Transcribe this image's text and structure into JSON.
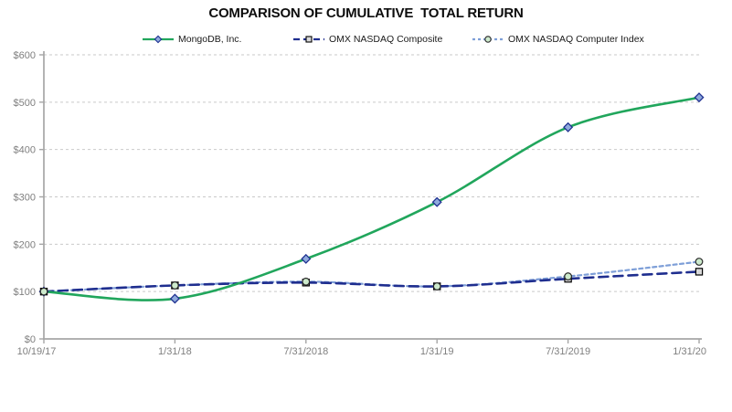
{
  "title": "COMPARISON OF CUMULATIVE  TOTAL RETURN",
  "chart_data": {
    "type": "line",
    "title": "COMPARISON OF CUMULATIVE TOTAL RETURN",
    "xlabel": "",
    "ylabel": "",
    "x_labels": [
      "10/19/17",
      "1/31/18",
      "7/31/2018",
      "1/31/19",
      "7/31/2019",
      "1/31/20"
    ],
    "y_tick_labels": [
      "$0",
      "$100",
      "$200",
      "$300",
      "$400",
      "$500",
      "$600"
    ],
    "ylim": [
      0,
      600
    ],
    "grid": "horizontal-dashed",
    "legend_position": "top-center",
    "series": [
      {
        "name": "MongoDB, Inc.",
        "values": [
          100,
          85,
          169,
          289,
          447,
          510
        ],
        "color": "#21a65c",
        "line_style": "solid",
        "marker": "diamond",
        "marker_fill": "#8faadc",
        "marker_stroke": "#1f3191"
      },
      {
        "name": "OMX NASDAQ Composite",
        "values": [
          100,
          113,
          119,
          111,
          127,
          142
        ],
        "color": "#1f2e8f",
        "line_style": "long-dash",
        "marker": "square",
        "marker_fill": "#d9d9d9",
        "marker_stroke": "#000000"
      },
      {
        "name": "OMX NASDAQ Computer Index",
        "values": [
          100,
          113,
          121,
          111,
          132,
          163
        ],
        "color": "#7e9fd8",
        "line_style": "short-dash",
        "marker": "circle",
        "marker_fill": "#cdeacc",
        "marker_stroke": "#2a2a2a"
      }
    ],
    "axis_color": "#a6a6a6",
    "grid_color": "#c9c9c9",
    "tick_label_color": "#7f7f7f"
  }
}
